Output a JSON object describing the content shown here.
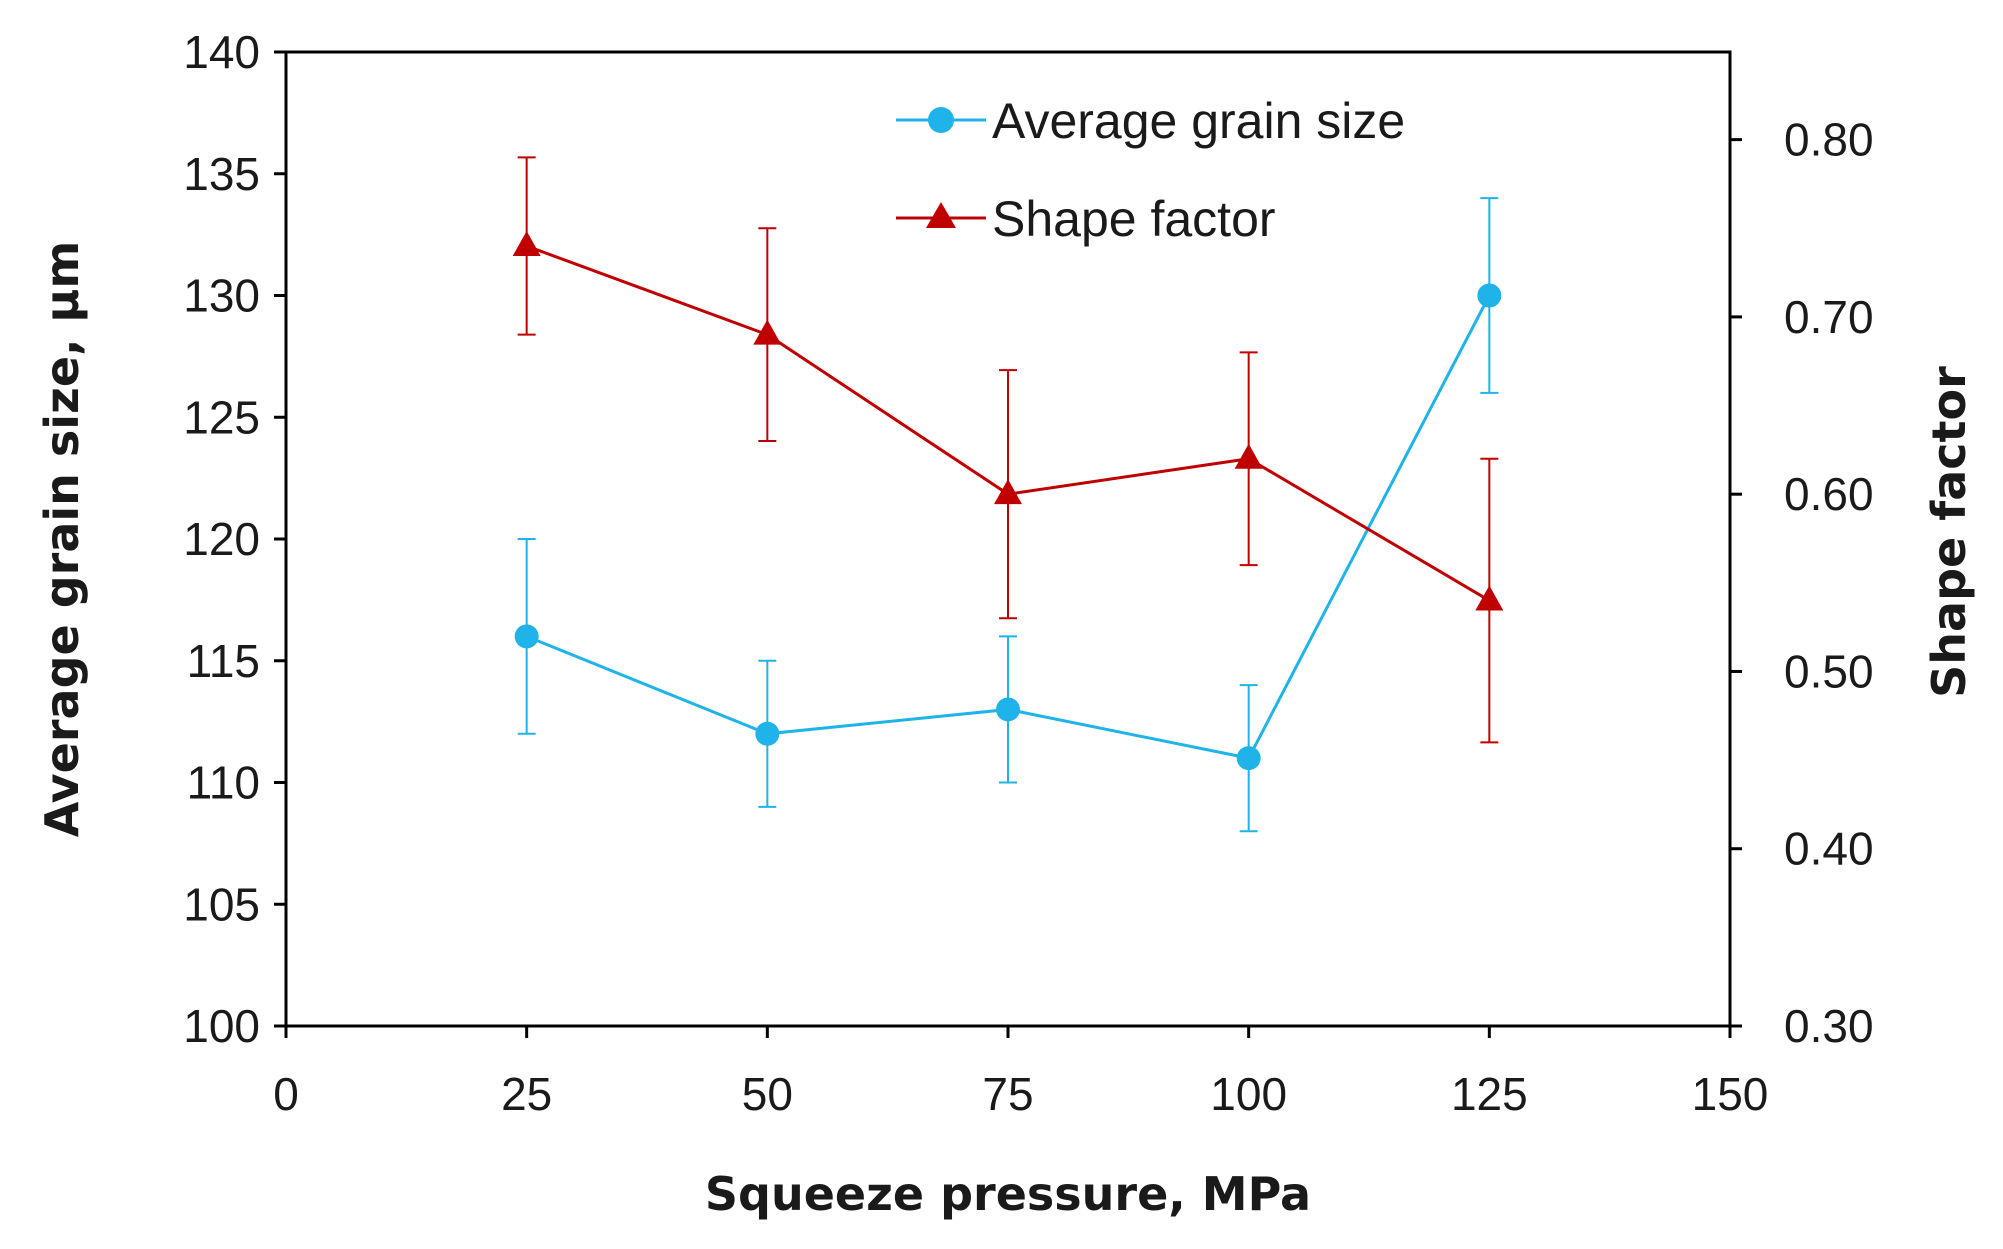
{
  "chart_data": {
    "type": "line",
    "x": [
      25,
      50,
      75,
      100,
      125
    ],
    "x_ticks": [
      "0",
      "25",
      "50",
      "75",
      "100",
      "125",
      "150"
    ],
    "xlim": [
      0,
      150
    ],
    "xlabel": "Squeeze pressure, MPa",
    "y_left": {
      "label": "Average grain size, µm",
      "lim": [
        100,
        140
      ],
      "ticks": [
        "100",
        "105",
        "110",
        "115",
        "120",
        "125",
        "130",
        "135",
        "140"
      ]
    },
    "y_right": {
      "label": "Shape factor",
      "lim": [
        0.3,
        0.85
      ],
      "ticks": [
        "0.30",
        "0.40",
        "0.50",
        "0.60",
        "0.70",
        "0.80"
      ]
    },
    "grid": false,
    "legend_position": "top-center",
    "series": [
      {
        "name": "Average grain size",
        "axis": "left",
        "marker": "circle",
        "color": "#1fb3ea",
        "values": [
          116,
          112,
          113,
          111,
          130
        ],
        "error_low": [
          112,
          109,
          110,
          108,
          126
        ],
        "error_high": [
          120,
          115,
          116,
          114,
          134
        ]
      },
      {
        "name": "Shape factor",
        "axis": "right",
        "marker": "triangle",
        "color": "#c00000",
        "values": [
          0.74,
          0.69,
          0.6,
          0.62,
          0.54
        ],
        "error_low": [
          0.69,
          0.63,
          0.53,
          0.56,
          0.46
        ],
        "error_high": [
          0.79,
          0.75,
          0.67,
          0.68,
          0.62
        ]
      }
    ]
  }
}
